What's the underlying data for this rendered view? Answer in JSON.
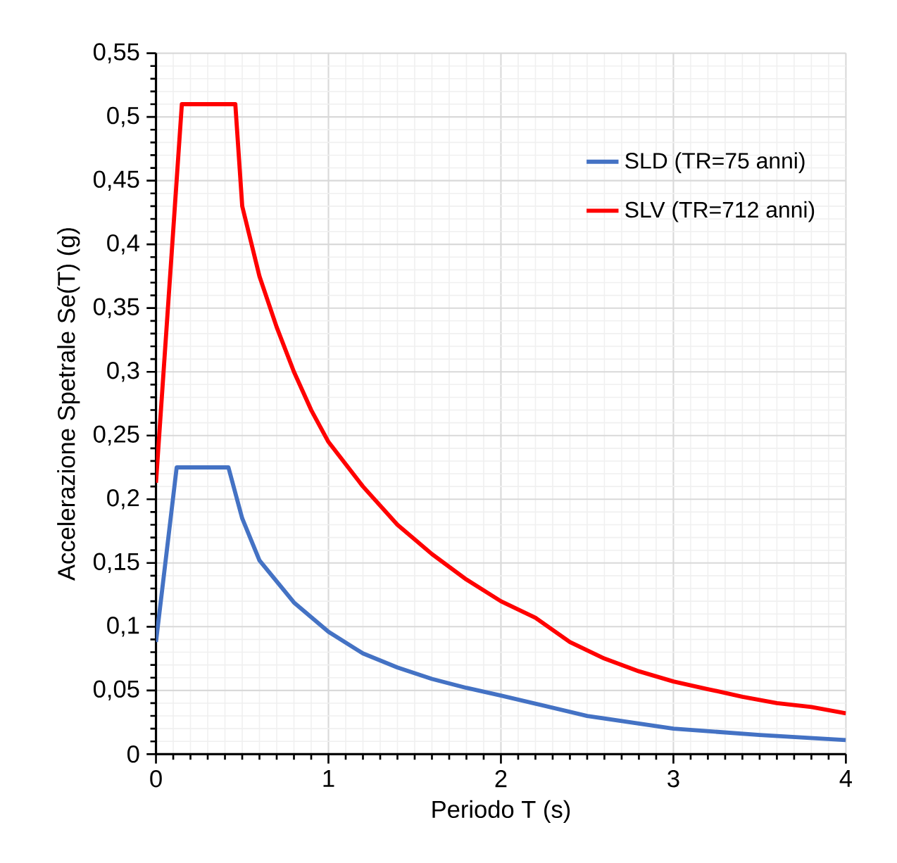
{
  "chart_data": {
    "type": "line",
    "xlabel": "Periodo T (s)",
    "ylabel": "Accelerazione Spetrale Se(T) (g)",
    "x": [
      0,
      0.12,
      0.42,
      0.5,
      0.6,
      0.8,
      1.0,
      1.2,
      1.4,
      1.6,
      1.8,
      2.0,
      2.5,
      3.0,
      3.5,
      4.0
    ],
    "series": [
      {
        "name": "SLD (TR=75 anni)",
        "color": "#4472c4",
        "values": [
          0.088,
          0.225,
          0.225,
          0.185,
          0.152,
          0.119,
          0.096,
          0.079,
          0.068,
          0.059,
          0.052,
          0.046,
          0.03,
          0.02,
          0.015,
          0.011
        ]
      },
      {
        "name": "SLV (TR=712 anni)",
        "color": "#ff0000",
        "x": [
          0,
          0.15,
          0.46,
          0.5,
          0.6,
          0.7,
          0.8,
          0.9,
          1.0,
          1.2,
          1.4,
          1.6,
          1.8,
          2.0,
          2.2,
          2.4,
          2.6,
          2.8,
          3.0,
          3.2,
          3.4,
          3.6,
          3.8,
          4.0
        ],
        "values": [
          0.213,
          0.51,
          0.51,
          0.43,
          0.375,
          0.335,
          0.3,
          0.27,
          0.245,
          0.21,
          0.18,
          0.157,
          0.137,
          0.12,
          0.107,
          0.088,
          0.075,
          0.065,
          0.057,
          0.051,
          0.045,
          0.04,
          0.037,
          0.032
        ]
      }
    ],
    "xlim": [
      0,
      4
    ],
    "xticks": [
      0,
      1,
      2,
      3,
      4
    ],
    "ylim": [
      0,
      0.55
    ],
    "yticks": [
      0,
      {
        "value": 0.05,
        "label": "0,05"
      },
      {
        "value": 0.1,
        "label": "0,1"
      },
      {
        "value": 0.15,
        "label": "0,15"
      },
      {
        "value": 0.2,
        "label": "0,2"
      },
      {
        "value": 0.25,
        "label": "0,25"
      },
      {
        "value": 0.3,
        "label": "0,3"
      },
      {
        "value": 0.35,
        "label": "0,35"
      },
      {
        "value": 0.4,
        "label": "0,4"
      },
      {
        "value": 0.45,
        "label": "0,45"
      },
      {
        "value": 0.5,
        "label": "0,5"
      },
      {
        "value": 0.55,
        "label": "0,55"
      }
    ],
    "grid": true,
    "legend": "top right",
    "marker": "none",
    "line_style": "solid"
  }
}
